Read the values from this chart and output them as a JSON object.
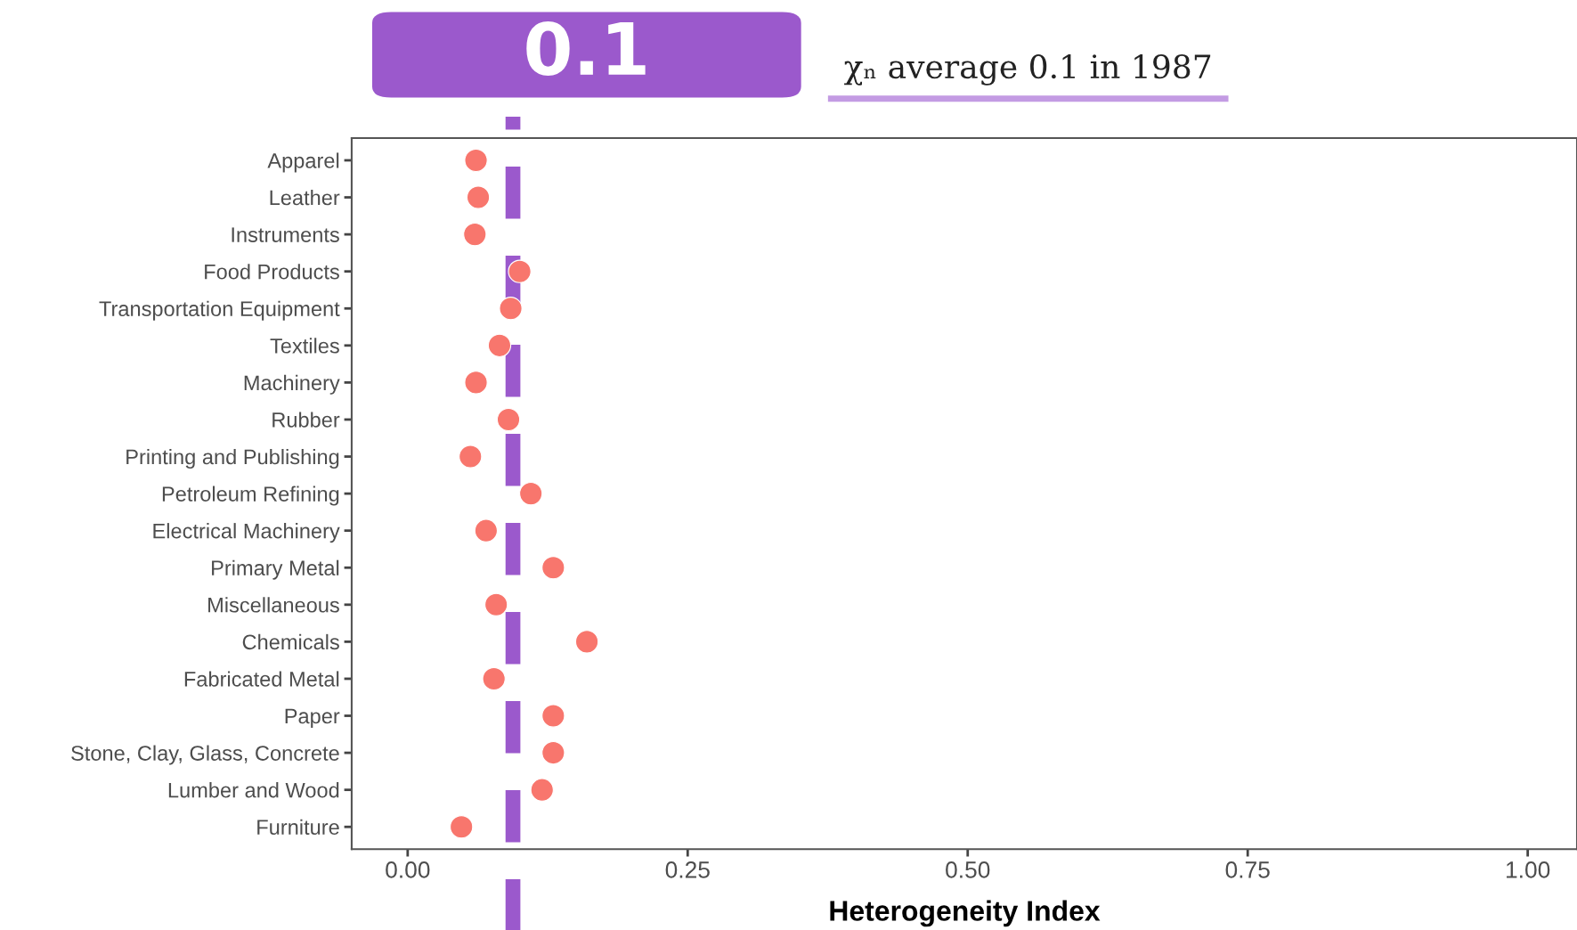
{
  "chart_data": {
    "type": "scatter",
    "orientation": "horizontal",
    "xlabel": "Heterogeneity Index",
    "categories": [
      "Apparel",
      "Leather",
      "Instruments",
      "Food Products",
      "Transportation Equipment",
      "Textiles",
      "Machinery",
      "Rubber",
      "Printing and Publishing",
      "Petroleum Refining",
      "Electrical Machinery",
      "Primary Metal",
      "Miscellaneous",
      "Chemicals",
      "Fabricated Metal",
      "Paper",
      "Stone, Clay, Glass, Concrete",
      "Lumber and Wood",
      "Furniture"
    ],
    "series": [
      {
        "color": "#f8766d",
        "values": [
          0.061,
          0.063,
          0.06,
          0.1,
          0.092,
          0.082,
          0.061,
          0.09,
          0.056,
          0.11,
          0.07,
          0.13,
          0.079,
          0.16,
          0.077,
          0.13,
          0.13,
          0.12,
          0.048
        ]
      }
    ],
    "xlim": [
      -0.05,
      1.044
    ],
    "xticks": [
      {
        "value": 0,
        "label": "0.00"
      },
      {
        "value": 0.25,
        "label": "0.25"
      },
      {
        "value": 0.5,
        "label": "0.50"
      },
      {
        "value": 0.75,
        "label": "0.75"
      },
      {
        "value": 1,
        "label": "1.00"
      }
    ],
    "ref_lines": [
      {
        "axis": "x",
        "value": 0.094,
        "label": "0.1",
        "color": "#9b59cc",
        "line_style": "dashed"
      }
    ],
    "annotations": [
      "χₙ average 0.1 in 1987"
    ],
    "marker": "circle",
    "grid": false,
    "legend": false
  }
}
